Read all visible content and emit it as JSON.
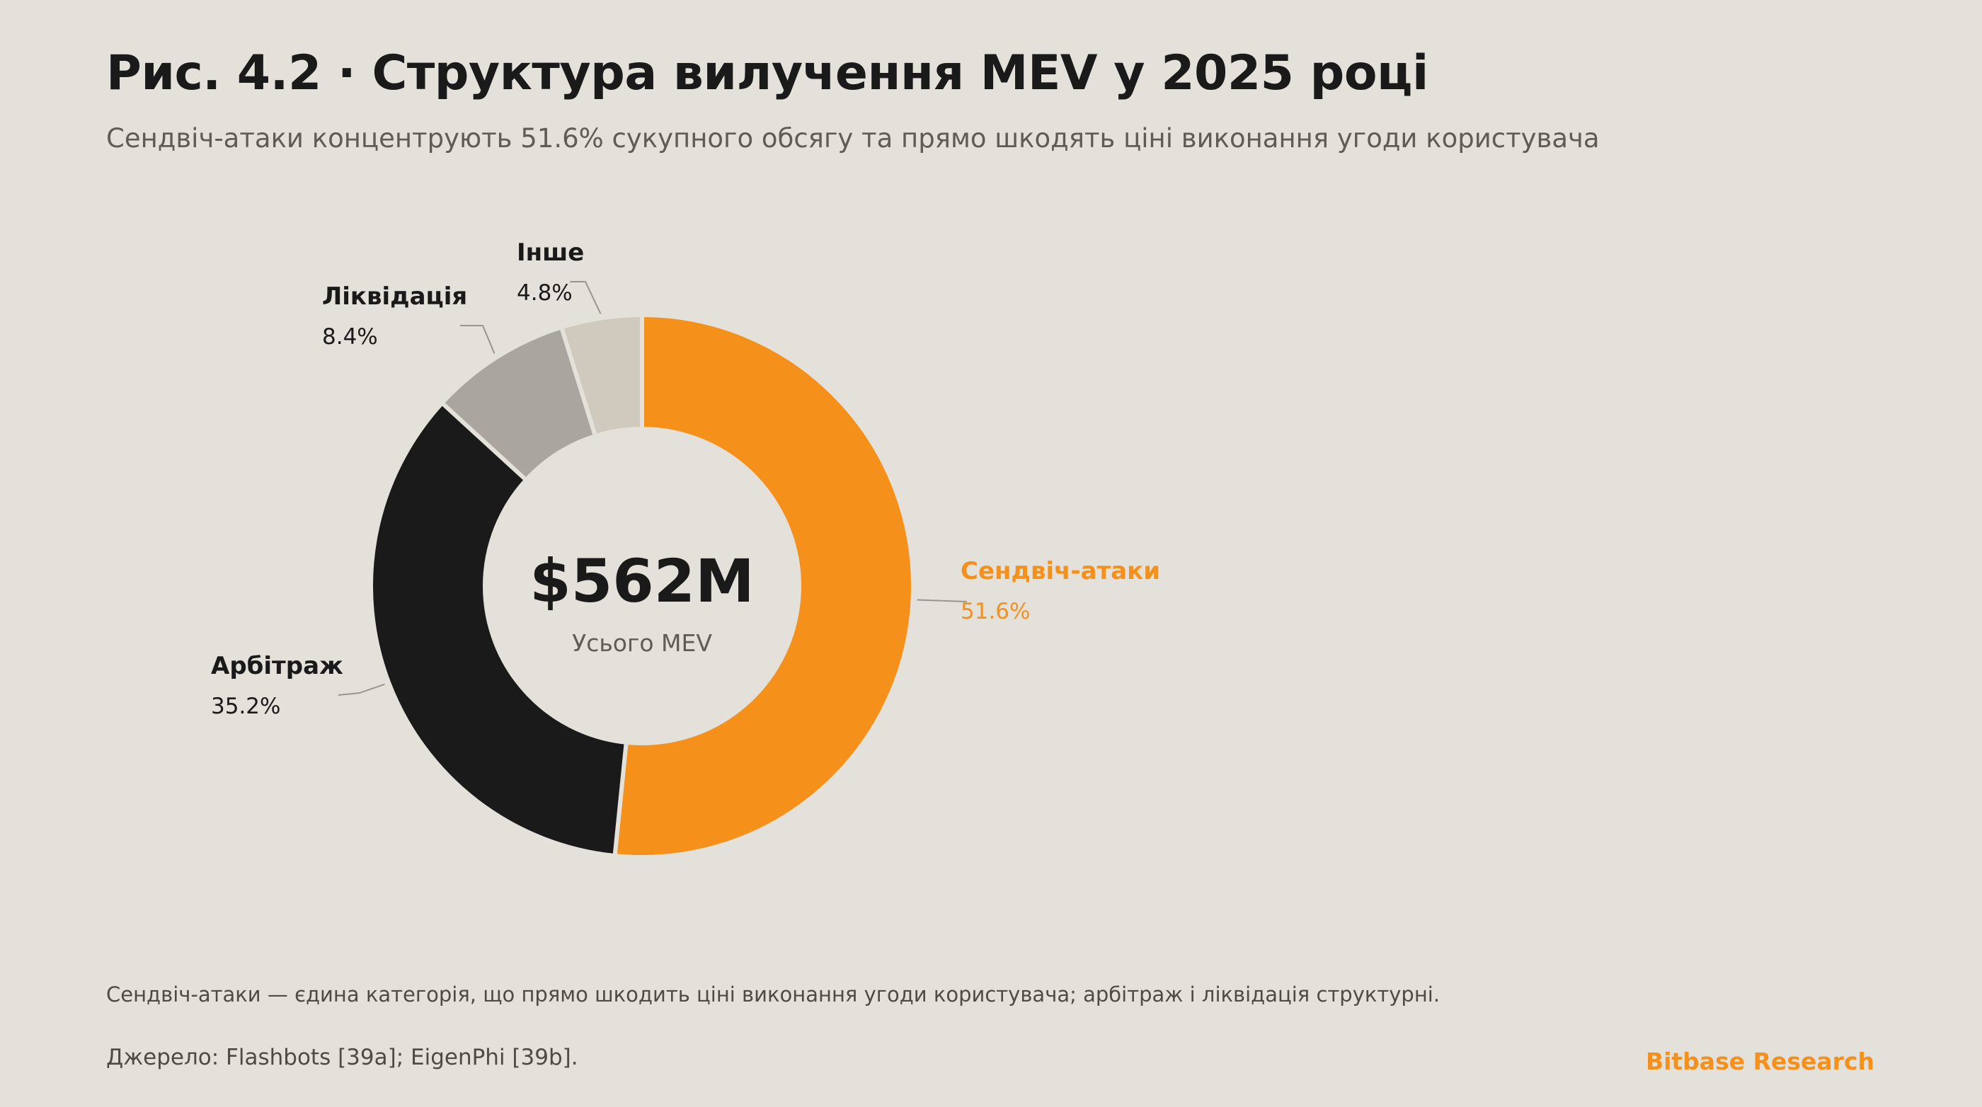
{
  "header": {
    "title": "Рис. 4.2 · Структура вилучення MEV у 2025 році",
    "subtitle": "Сендвіч-атаки концентрують 51.6% сукупного обсягу та прямо шкодять ціні виконання угоди користувача"
  },
  "chart_data": {
    "type": "pie",
    "variant": "donut",
    "center_value": "$562M",
    "center_label": "Усього MEV",
    "slices": [
      {
        "name": "Сендвіч-атаки",
        "value": 51.6,
        "label": "51.6%",
        "color": "#f5901a",
        "highlight": true
      },
      {
        "name": "Арбітраж",
        "value": 35.2,
        "label": "35.2%",
        "color": "#1a1a1a",
        "highlight": false
      },
      {
        "name": "Ліквідація",
        "value": 8.4,
        "label": "8.4%",
        "color": "#aaa59e",
        "highlight": false
      },
      {
        "name": "Інше",
        "value": 4.8,
        "label": "4.8%",
        "color": "#d0c9be",
        "highlight": false
      }
    ],
    "legend": "none"
  },
  "footer": {
    "note": "Сендвіч-атаки — єдина категорія, що прямо шкодить ціні виконання угоди користувача; арбітраж і ліквідація структурні.",
    "source": "Джерело: Flashbots [39a]; EigenPhi [39b].",
    "brand": "Bitbase Research"
  },
  "colors": {
    "background": "#e4e0da",
    "accent": "#f5901a",
    "text": "#1a1a1a",
    "muted_text": "#5f5b57"
  }
}
